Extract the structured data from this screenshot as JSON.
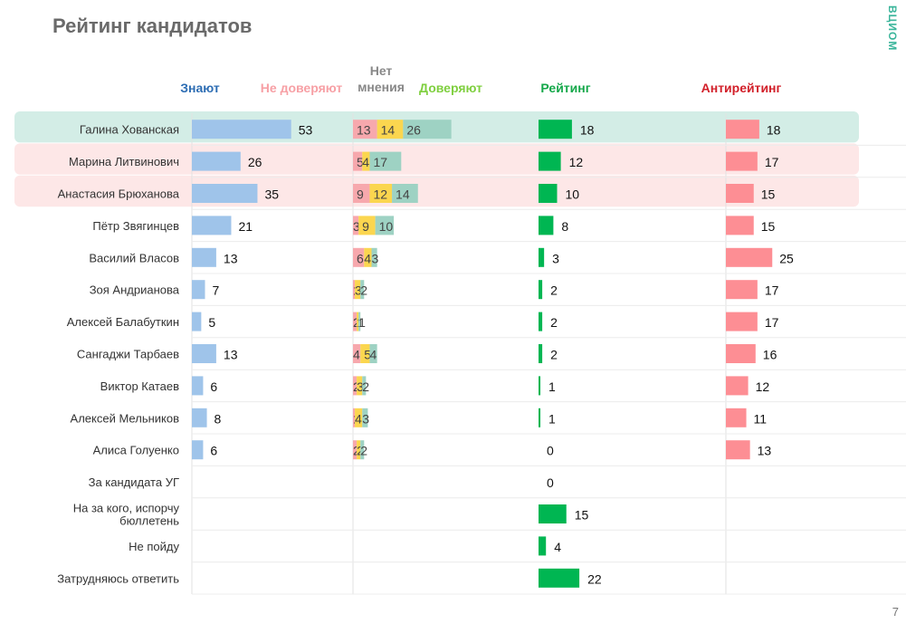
{
  "title": "Рейтинг кандидатов",
  "logo": "ВЦИОМ",
  "page_number": "7",
  "chart_data": {
    "type": "bar",
    "title": "Рейтинг кандидатов",
    "headers": {
      "know": "Знают",
      "distrust": "Не доверяют",
      "no_opinion": "Нет мнения",
      "trust": "Доверяют",
      "rating": "Рейтинг",
      "antirating": "Антирейтинг"
    },
    "colors": {
      "know": "#9fc4ea",
      "distrust": "#f7a8ad",
      "no_opinion": "#fbd64f",
      "trust": "#9ed2c3",
      "rating": "#00b652",
      "antirating": "#fd8e94",
      "highlight_green": "#d3ede6",
      "highlight_pink": "#fde7e7",
      "header_know": "#2d6db3",
      "header_distrust": "#f7a0a5",
      "header_no_opinion": "#888888",
      "header_trust": "#7fcf3f",
      "header_rating": "#14a84a",
      "header_antirating": "#d2202a"
    },
    "rows": [
      {
        "name": "Галина Хованская",
        "know": 53,
        "distrust": 13,
        "no_opinion": 14,
        "trust": 26,
        "rating": 18,
        "antirating": 18,
        "highlight": "green"
      },
      {
        "name": "Марина Литвинович",
        "know": 26,
        "distrust": 5,
        "no_opinion": 4,
        "trust": 17,
        "rating": 12,
        "antirating": 17,
        "highlight": "pink"
      },
      {
        "name": "Анастасия Брюханова",
        "know": 35,
        "distrust": 9,
        "no_opinion": 12,
        "trust": 14,
        "rating": 10,
        "antirating": 15,
        "highlight": "pink"
      },
      {
        "name": "Пётр Звягинцев",
        "know": 21,
        "distrust": 3,
        "no_opinion": 9,
        "trust": 10,
        "rating": 8,
        "antirating": 15
      },
      {
        "name": "Василий Власов",
        "know": 13,
        "distrust": 6,
        "no_opinion": 4,
        "trust": 3,
        "rating": 3,
        "antirating": 25
      },
      {
        "name": "Зоя Андрианова",
        "know": 7,
        "distrust": 1,
        "no_opinion": 3,
        "trust": 2,
        "rating": 2,
        "antirating": 17
      },
      {
        "name": "Алексей Балабуткин",
        "know": 5,
        "distrust": 2,
        "no_opinion": 1,
        "trust": 1,
        "rating": 2,
        "antirating": 17
      },
      {
        "name": "Сангаджи Тарбаев",
        "know": 13,
        "distrust": 4,
        "no_opinion": 5,
        "trust": 4,
        "rating": 2,
        "antirating": 16
      },
      {
        "name": "Виктор Катаев",
        "know": 6,
        "distrust": 2,
        "no_opinion": 3,
        "trust": 2,
        "rating": 1,
        "antirating": 12
      },
      {
        "name": "Алексей Мельников",
        "know": 8,
        "distrust": 1,
        "no_opinion": 4,
        "trust": 3,
        "rating": 1,
        "antirating": 11
      },
      {
        "name": "Алиса Голуенко",
        "know": 6,
        "distrust": 2,
        "no_opinion": 2,
        "trust": 2,
        "rating": 0,
        "antirating": 13
      },
      {
        "name": "За кандидата УГ",
        "rating": 0
      },
      {
        "name": "На за кого, испорчу бюллетень",
        "name_lines": [
          "На за кого, испорчу",
          "бюллетень"
        ],
        "rating": 15
      },
      {
        "name": "Не пойду",
        "rating": 4
      },
      {
        "name": "Затрудняюсь ответить",
        "rating": 22
      }
    ]
  }
}
